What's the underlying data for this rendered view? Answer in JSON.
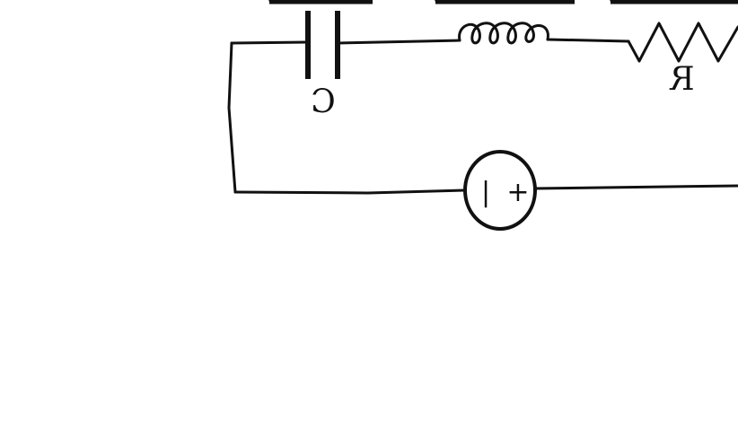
{
  "diagram": {
    "components": {
      "capacitor": {
        "label": "C"
      },
      "inductor": {
        "label": ""
      },
      "resistor": {
        "label": "R"
      },
      "source": {
        "plus_sign": "+",
        "minus_sign": "|"
      }
    },
    "orientation_note_visible": false,
    "colors": {
      "ink": "#111111",
      "background": "#ffffff"
    }
  }
}
